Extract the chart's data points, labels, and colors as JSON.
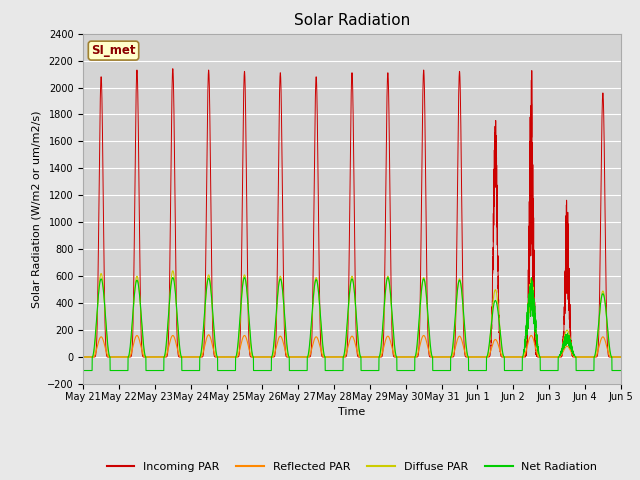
{
  "title": "Solar Radiation",
  "ylabel": "Solar Radiation (W/m2 or um/m2/s)",
  "xlabel": "Time",
  "ylim": [
    -200,
    2400
  ],
  "yticks": [
    -200,
    0,
    200,
    400,
    600,
    800,
    1000,
    1200,
    1400,
    1600,
    1800,
    2000,
    2200,
    2400
  ],
  "x_tick_labels": [
    "May 21",
    "May 22",
    "May 23",
    "May 24",
    "May 25",
    "May 26",
    "May 27",
    "May 28",
    "May 29",
    "May 30",
    "May 31",
    "Jun 1",
    "Jun 2",
    "Jun 3",
    "Jun 4",
    "Jun 5"
  ],
  "station_label": "SI_met",
  "legend_entries": [
    "Incoming PAR",
    "Reflected PAR",
    "Diffuse PAR",
    "Net Radiation"
  ],
  "colors": [
    "#cc0000",
    "#ff8800",
    "#cccc00",
    "#00cc00"
  ],
  "fig_bg": "#e8e8e8",
  "plot_bg": "#d4d4d4",
  "title_fontsize": 11,
  "label_fontsize": 8,
  "tick_fontsize": 7,
  "incoming_peaks": [
    2080,
    2130,
    2140,
    2130,
    2120,
    2110,
    2080,
    2110,
    2110,
    2130,
    2120,
    1800,
    2220,
    1200,
    1960
  ],
  "diffuse_peaks": [
    620,
    600,
    640,
    610,
    610,
    600,
    590,
    600,
    600,
    590,
    580,
    500,
    600,
    200,
    490
  ],
  "reflected_peaks": [
    150,
    160,
    160,
    165,
    160,
    155,
    150,
    155,
    155,
    160,
    155,
    130,
    160,
    80,
    150
  ],
  "net_peaks": [
    580,
    570,
    590,
    585,
    590,
    580,
    575,
    580,
    590,
    580,
    570,
    420,
    590,
    180,
    470
  ]
}
